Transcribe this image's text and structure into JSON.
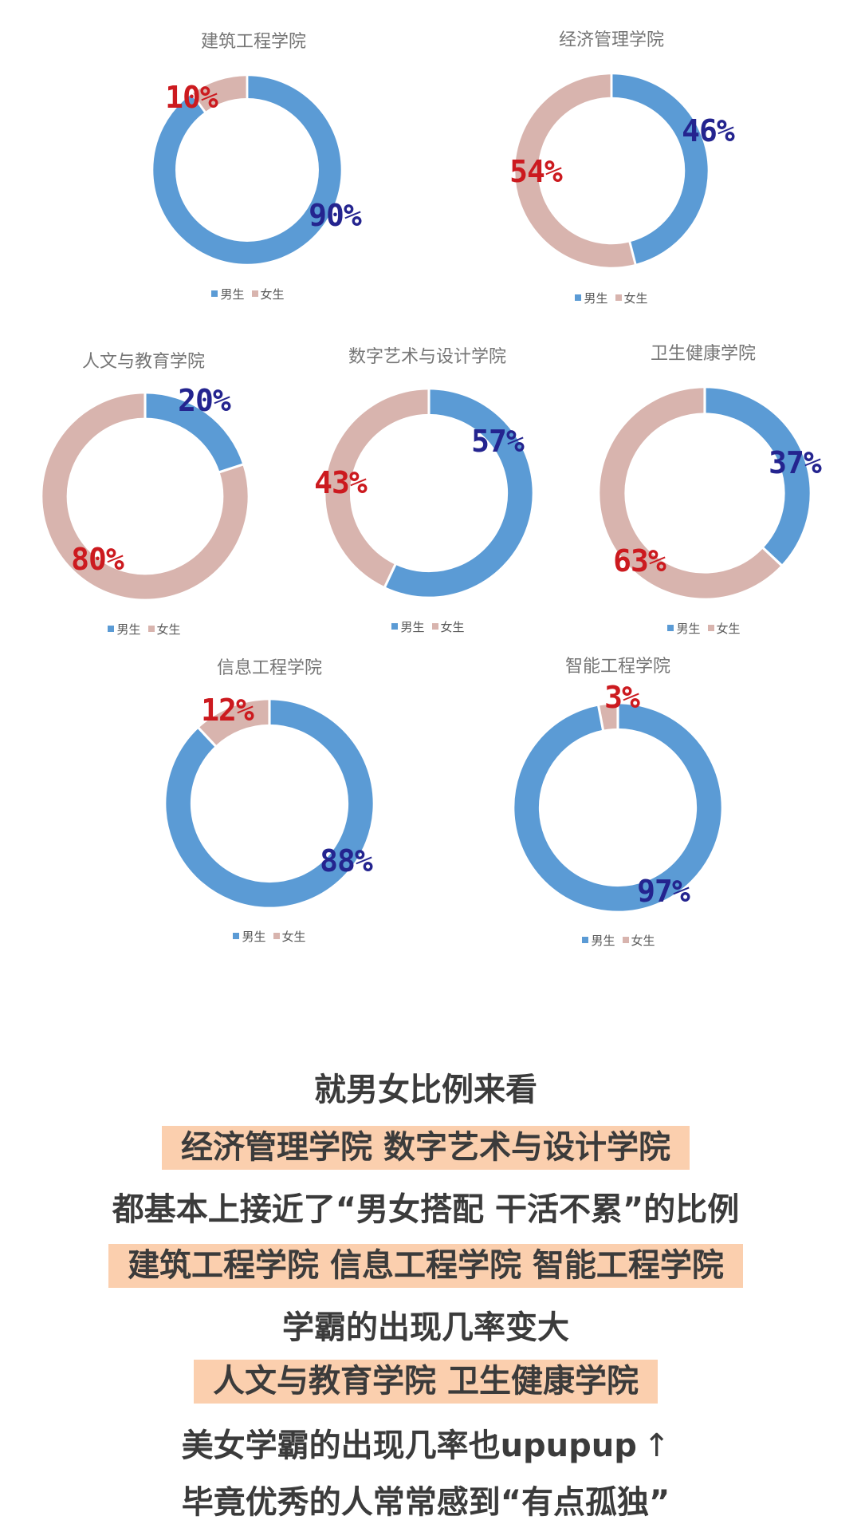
{
  "legend": {
    "male": "男生",
    "female": "女生"
  },
  "colors": {
    "male": "#5b9bd5",
    "female": "#d8b4ae",
    "male_label": "#24248f",
    "female_label": "#cc1a1f",
    "highlight": "#fbcfae",
    "text": "#3b3b3b",
    "title": "#757575"
  },
  "charts": [
    {
      "title": "建筑工程学院",
      "male": 90,
      "female": 10,
      "male_label": "90%",
      "female_label": "10%"
    },
    {
      "title": "经济管理学院",
      "male": 46,
      "female": 54,
      "male_label": "46%",
      "female_label": "54%"
    },
    {
      "title": "人文与教育学院",
      "male": 20,
      "female": 80,
      "male_label": "20%",
      "female_label": "80%"
    },
    {
      "title": "数字艺术与设计学院",
      "male": 57,
      "female": 43,
      "male_label": "57%",
      "female_label": "43%"
    },
    {
      "title": "卫生健康学院",
      "male": 37,
      "female": 63,
      "male_label": "37%",
      "female_label": "63%"
    },
    {
      "title": "信息工程学院",
      "male": 88,
      "female": 12,
      "male_label": "88%",
      "female_label": "12%"
    },
    {
      "title": "智能工程学院",
      "male": 97,
      "female": 3,
      "male_label": "97%",
      "female_label": "3%"
    }
  ],
  "summary": {
    "lines": [
      {
        "text": "就男女比例来看",
        "highlight": false
      },
      {
        "text": "经济管理学院 数字艺术与设计学院",
        "highlight": true
      },
      {
        "text": "都基本上接近了“男女搭配 干活不累”的比例",
        "highlight": false
      },
      {
        "text": "建筑工程学院 信息工程学院 智能工程学院",
        "highlight": true
      },
      {
        "text": "学霸的出现几率变大",
        "highlight": false
      },
      {
        "text": "人文与教育学院 卫生健康学院",
        "highlight": true
      },
      {
        "text": "美女学霸的出现几率也upupup",
        "suffix": "↑",
        "highlight": false
      },
      {
        "text": "毕竟优秀的人常常感到“有点孤独”",
        "highlight": false
      }
    ]
  },
  "chart_data": [
    {
      "type": "pie",
      "donut": true,
      "title": "建筑工程学院",
      "categories": [
        "男生",
        "女生"
      ],
      "values": [
        90,
        10
      ],
      "data_labels": [
        "90%",
        "10%"
      ],
      "legend": [
        "男生",
        "女生"
      ],
      "legend_position": "bottom"
    },
    {
      "type": "pie",
      "donut": true,
      "title": "经济管理学院",
      "categories": [
        "男生",
        "女生"
      ],
      "values": [
        46,
        54
      ],
      "data_labels": [
        "46%",
        "54%"
      ],
      "legend": [
        "男生",
        "女生"
      ],
      "legend_position": "bottom"
    },
    {
      "type": "pie",
      "donut": true,
      "title": "人文与教育学院",
      "categories": [
        "男生",
        "女生"
      ],
      "values": [
        20,
        80
      ],
      "data_labels": [
        "20%",
        "80%"
      ],
      "legend": [
        "男生",
        "女生"
      ],
      "legend_position": "bottom"
    },
    {
      "type": "pie",
      "donut": true,
      "title": "数字艺术与设计学院",
      "categories": [
        "男生",
        "女生"
      ],
      "values": [
        57,
        43
      ],
      "data_labels": [
        "57%",
        "43%"
      ],
      "legend": [
        "男生",
        "女生"
      ],
      "legend_position": "bottom"
    },
    {
      "type": "pie",
      "donut": true,
      "title": "卫生健康学院",
      "categories": [
        "男生",
        "女生"
      ],
      "values": [
        37,
        63
      ],
      "data_labels": [
        "37%",
        "63%"
      ],
      "legend": [
        "男生",
        "女生"
      ],
      "legend_position": "bottom"
    },
    {
      "type": "pie",
      "donut": true,
      "title": "信息工程学院",
      "categories": [
        "男生",
        "女生"
      ],
      "values": [
        88,
        12
      ],
      "data_labels": [
        "88%",
        "12%"
      ],
      "legend": [
        "男生",
        "女生"
      ],
      "legend_position": "bottom"
    },
    {
      "type": "pie",
      "donut": true,
      "title": "智能工程学院",
      "categories": [
        "男生",
        "女生"
      ],
      "values": [
        97,
        3
      ],
      "data_labels": [
        "97%",
        "3%"
      ],
      "legend": [
        "男生",
        "女生"
      ],
      "legend_position": "bottom"
    }
  ]
}
